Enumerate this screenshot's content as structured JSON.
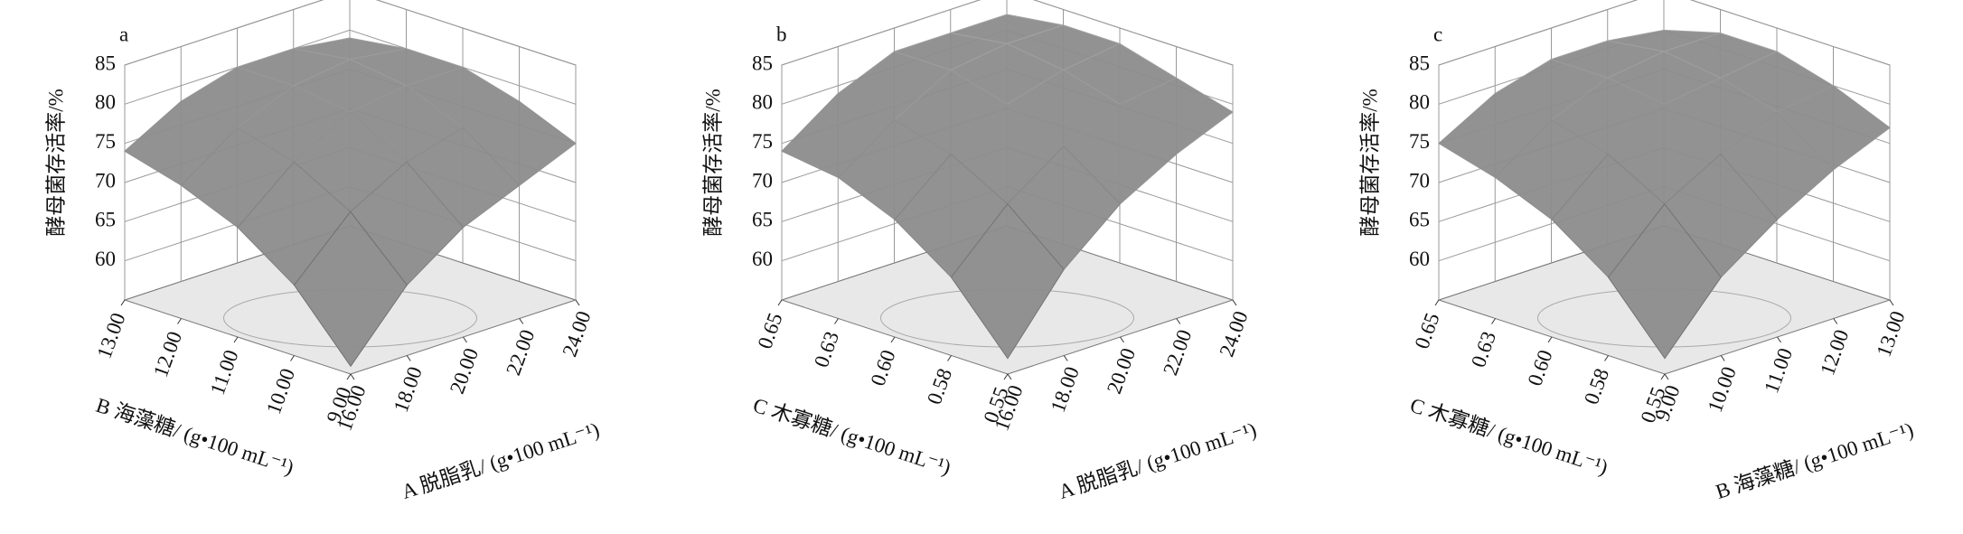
{
  "chart_data": [
    {
      "type": "surface",
      "label": "a",
      "color": "#8c8c8c",
      "zlabel": "酵母菌存活率/%",
      "xlabel": "A 脱脂乳/ (g•100 mL⁻¹)",
      "ylabel": "B 海藻糖/ (g•100 mL⁻¹)",
      "xticks": [
        {
          "value": 16,
          "label": "16.00"
        },
        {
          "value": 18,
          "label": "18.00"
        },
        {
          "value": 20,
          "label": "20.00"
        },
        {
          "value": 22,
          "label": "22.00"
        },
        {
          "value": 24,
          "label": "24.00"
        }
      ],
      "yticks": [
        {
          "value": 9,
          "label": "9.00"
        },
        {
          "value": 10,
          "label": "10.00"
        },
        {
          "value": 11,
          "label": "11.00"
        },
        {
          "value": 12,
          "label": "12.00"
        },
        {
          "value": 13,
          "label": "13.00"
        }
      ],
      "xlim": [
        16,
        24
      ],
      "ylim": [
        9,
        13
      ],
      "zlim": [
        55,
        85
      ],
      "zticks": [
        60,
        65,
        70,
        75,
        80,
        85
      ],
      "z": [
        [
          56,
          64,
          69,
          72,
          74
        ],
        [
          64,
          71,
          75,
          77,
          78
        ],
        [
          69,
          75,
          79,
          80,
          80
        ],
        [
          72,
          77,
          80,
          81,
          80
        ],
        [
          75,
          78,
          80,
          80,
          79
        ]
      ]
    },
    {
      "type": "surface",
      "label": "b",
      "color": "#8c8c8c",
      "zlabel": "酵母菌存活率/%",
      "xlabel": "A 脱脂乳/ (g•100 mL⁻¹)",
      "ylabel": "C 木寡糖/ (g•100 mL⁻¹)",
      "xticks": [
        {
          "value": 16,
          "label": "16.00"
        },
        {
          "value": 18,
          "label": "18.00"
        },
        {
          "value": 20,
          "label": "20.00"
        },
        {
          "value": 22,
          "label": "22.00"
        },
        {
          "value": 24,
          "label": "24.00"
        }
      ],
      "yticks": [
        {
          "value": 0.55,
          "label": "0.55"
        },
        {
          "value": 0.575,
          "label": "0.58"
        },
        {
          "value": 0.6,
          "label": "0.60"
        },
        {
          "value": 0.625,
          "label": "0.63"
        },
        {
          "value": 0.65,
          "label": "0.65"
        }
      ],
      "xlim": [
        16,
        24
      ],
      "ylim": [
        0.55,
        0.65
      ],
      "zlim": [
        55,
        85
      ],
      "zticks": [
        60,
        65,
        70,
        75,
        80,
        85
      ],
      "z": [
        [
          57,
          65,
          70,
          73,
          74
        ],
        [
          66,
          72,
          76,
          78,
          79
        ],
        [
          72,
          77,
          80,
          82,
          82
        ],
        [
          76,
          80,
          82,
          83,
          82
        ],
        [
          79,
          81,
          83,
          83,
          82
        ]
      ]
    },
    {
      "type": "surface",
      "label": "c",
      "color": "#8c8c8c",
      "zlabel": "酵母菌存活率/%",
      "xlabel": "B 海藻糖/ (g•100 mL⁻¹)",
      "ylabel": "C 木寡糖/ (g•100 mL⁻¹)",
      "xticks": [
        {
          "value": 9,
          "label": "9.00"
        },
        {
          "value": 10,
          "label": "10.00"
        },
        {
          "value": 11,
          "label": "11.00"
        },
        {
          "value": 12,
          "label": "12.00"
        },
        {
          "value": 13,
          "label": "13.00"
        }
      ],
      "yticks": [
        {
          "value": 0.55,
          "label": "0.55"
        },
        {
          "value": 0.575,
          "label": "0.58"
        },
        {
          "value": 0.6,
          "label": "0.60"
        },
        {
          "value": 0.625,
          "label": "0.63"
        },
        {
          "value": 0.65,
          "label": "0.65"
        }
      ],
      "xlim": [
        9,
        13
      ],
      "ylim": [
        0.55,
        0.65
      ],
      "zlim": [
        55,
        85
      ],
      "zticks": [
        60,
        65,
        70,
        75,
        80,
        85
      ],
      "z": [
        [
          57,
          65,
          70,
          73,
          75
        ],
        [
          65,
          72,
          76,
          78,
          79
        ],
        [
          70,
          76,
          80,
          81,
          81
        ],
        [
          74,
          79,
          81,
          82,
          81
        ],
        [
          77,
          80,
          82,
          82,
          80
        ]
      ]
    }
  ]
}
